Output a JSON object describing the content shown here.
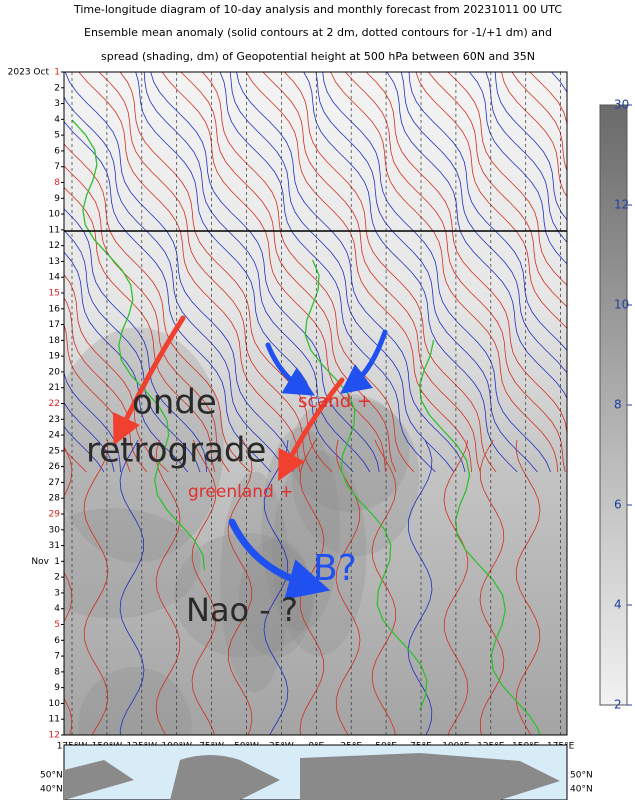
{
  "title": [
    "Time-longitude diagram of 10-day analysis and monthly forecast from 20231011 00 UTC",
    "Ensemble mean anomaly (solid contours at 2 dm, dotted contours for -1/+1 dm) and",
    "spread (shading, dm) of Geopotential height at 500 hPa between 60N and 35N"
  ],
  "highlight_color": "#e02020",
  "days": [
    {
      "prefix": "2023 Oct",
      "label": "1",
      "highlight": true
    },
    {
      "label": "2"
    },
    {
      "label": "3"
    },
    {
      "label": "4"
    },
    {
      "label": "5"
    },
    {
      "label": "6"
    },
    {
      "label": "7"
    },
    {
      "label": "8",
      "highlight": true
    },
    {
      "label": "9"
    },
    {
      "label": "10"
    },
    {
      "label": "11"
    },
    {
      "label": "12"
    },
    {
      "label": "13"
    },
    {
      "label": "14"
    },
    {
      "label": "15",
      "highlight": true
    },
    {
      "label": "16"
    },
    {
      "label": "17"
    },
    {
      "label": "18"
    },
    {
      "label": "19"
    },
    {
      "label": "20"
    },
    {
      "label": "21"
    },
    {
      "label": "22",
      "highlight": true
    },
    {
      "label": "23"
    },
    {
      "label": "24"
    },
    {
      "label": "25"
    },
    {
      "label": "26"
    },
    {
      "label": "27"
    },
    {
      "label": "28"
    },
    {
      "label": "29",
      "highlight": true
    },
    {
      "label": "30"
    },
    {
      "label": "31"
    },
    {
      "prefix": "Nov",
      "label": "1"
    },
    {
      "label": "2"
    },
    {
      "label": "3"
    },
    {
      "label": "4"
    },
    {
      "label": "5",
      "highlight": true
    },
    {
      "label": "6"
    },
    {
      "label": "7"
    },
    {
      "label": "8"
    },
    {
      "label": "9"
    },
    {
      "label": "10"
    },
    {
      "label": "11"
    },
    {
      "label": "12",
      "highlight": true
    }
  ],
  "longitudes": [
    "175°W",
    "150°W",
    "125°W",
    "100°W",
    "75°W",
    "50°W",
    "25°W",
    "0°E",
    "25°E",
    "50°E",
    "75°E",
    "100°E",
    "125°E",
    "150°E",
    "175°E"
  ],
  "colorbar": {
    "ticks": [
      {
        "value": 30,
        "label": "30"
      },
      {
        "value": 12,
        "label": "12"
      },
      {
        "value": 10,
        "label": "10"
      },
      {
        "value": 8,
        "label": "8"
      },
      {
        "value": 6,
        "label": "6"
      },
      {
        "value": 4,
        "label": "4"
      },
      {
        "value": 2,
        "label": "2"
      }
    ]
  },
  "annotations": {
    "onde": "onde",
    "retrograde": "retrograde",
    "scand": "scand +",
    "greenland": "greenland +",
    "b": "B?",
    "nao": "Nao - ?"
  },
  "map": {
    "left": [
      "50°N",
      "40°N"
    ],
    "right": [
      "50°N",
      "40°N"
    ]
  }
}
